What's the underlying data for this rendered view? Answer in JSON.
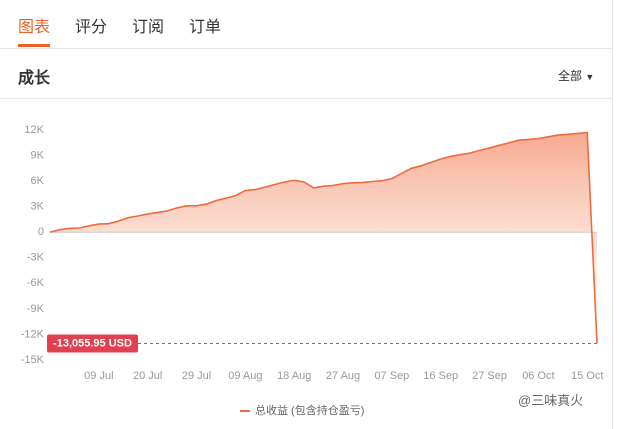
{
  "tabs": [
    "图表",
    "评分",
    "订阅",
    "订单"
  ],
  "section_title": "成长",
  "filter": "全部",
  "watermark": "@三味真火",
  "chart_data": {
    "type": "area",
    "categories": [
      null,
      null,
      null,
      null,
      null,
      "09 Jul",
      null,
      null,
      null,
      null,
      "20 Jul",
      null,
      null,
      null,
      null,
      "29 Jul",
      null,
      null,
      null,
      null,
      "09 Aug",
      null,
      null,
      null,
      null,
      "18 Aug",
      null,
      null,
      null,
      null,
      "27 Aug",
      null,
      null,
      null,
      null,
      "07 Sep",
      null,
      null,
      null,
      null,
      "16 Sep",
      null,
      null,
      null,
      null,
      "27 Sep",
      null,
      null,
      null,
      null,
      "06 Oct",
      null,
      null,
      null,
      null,
      "15 Oct",
      null
    ],
    "series": [
      {
        "name": "总收益 (包含持仓盈亏)",
        "color": "#ef6b3f",
        "values": [
          0,
          300,
          450,
          500,
          750,
          950,
          1000,
          1300,
          1700,
          1900,
          2150,
          2300,
          2500,
          2850,
          3100,
          3100,
          3300,
          3700,
          4000,
          4300,
          4900,
          5000,
          5300,
          5600,
          5900,
          6100,
          5900,
          5200,
          5400,
          5500,
          5700,
          5800,
          5850,
          5950,
          6050,
          6300,
          6900,
          7500,
          7800,
          8200,
          8600,
          8900,
          9100,
          9300,
          9600,
          9900,
          10200,
          10500,
          10800,
          10900,
          11000,
          11200,
          11400,
          11500,
          11600,
          11700,
          -13055.95
        ]
      }
    ],
    "annotation": "-13,055.95 USD",
    "ylim": [
      -15000,
      12000
    ],
    "yticks": [
      {
        "value": 12000,
        "label": "12K"
      },
      {
        "value": 9000,
        "label": "9K"
      },
      {
        "value": 6000,
        "label": "6K"
      },
      {
        "value": 3000,
        "label": "3K"
      },
      0,
      {
        "value": -3000,
        "label": "-3K"
      },
      {
        "value": -6000,
        "label": "-6K"
      },
      {
        "value": -9000,
        "label": "-9K"
      },
      {
        "value": -12000,
        "label": "-12K"
      },
      {
        "value": -15000,
        "label": "-15K"
      }
    ]
  }
}
